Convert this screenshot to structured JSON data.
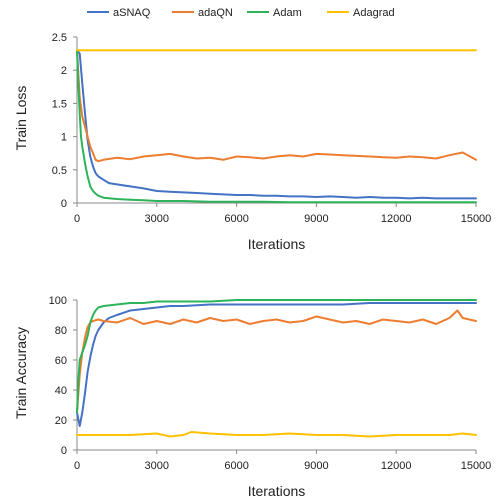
{
  "chart_data": [
    {
      "type": "line",
      "xlabel": "Iterations",
      "ylabel": "Train Loss",
      "xlim": [
        0,
        15000
      ],
      "ylim": [
        0,
        2.5
      ],
      "xticks": [
        "0",
        "3000",
        "6000",
        "9000",
        "12000",
        "15000"
      ],
      "yticks": [
        "0",
        "0.5",
        "1",
        "1.5",
        "2",
        "2.5"
      ],
      "grid": false,
      "legend": "top",
      "series": [
        {
          "name": "aSNAQ",
          "color": "#4472C4",
          "x": [
            0,
            100,
            200,
            300,
            400,
            500,
            600,
            700,
            800,
            1000,
            1200,
            1500,
            2000,
            2500,
            3000,
            3500,
            4000,
            4500,
            5000,
            5500,
            6000,
            6500,
            7000,
            7500,
            8000,
            8500,
            9000,
            9500,
            10000,
            10500,
            11000,
            11500,
            12000,
            12500,
            13000,
            13500,
            14000,
            14500,
            15000
          ],
          "y": [
            2.3,
            2.25,
            1.8,
            1.35,
            0.95,
            0.7,
            0.55,
            0.45,
            0.4,
            0.35,
            0.3,
            0.28,
            0.25,
            0.22,
            0.18,
            0.17,
            0.16,
            0.15,
            0.14,
            0.13,
            0.12,
            0.12,
            0.11,
            0.11,
            0.1,
            0.1,
            0.09,
            0.1,
            0.09,
            0.08,
            0.09,
            0.08,
            0.08,
            0.07,
            0.08,
            0.07,
            0.07,
            0.07,
            0.07
          ]
        },
        {
          "name": "adaQN",
          "color": "#ED7D31",
          "x": [
            0,
            100,
            200,
            300,
            400,
            500,
            600,
            700,
            800,
            1000,
            1500,
            2000,
            2500,
            3000,
            3500,
            4000,
            4500,
            5000,
            5500,
            6000,
            6500,
            7000,
            7500,
            8000,
            8500,
            9000,
            9500,
            10000,
            10500,
            11000,
            11500,
            12000,
            12500,
            13000,
            13500,
            14000,
            14500,
            15000
          ],
          "y": [
            2.3,
            1.6,
            1.3,
            1.15,
            1.0,
            0.85,
            0.75,
            0.65,
            0.63,
            0.65,
            0.68,
            0.66,
            0.7,
            0.72,
            0.74,
            0.7,
            0.67,
            0.68,
            0.65,
            0.7,
            0.69,
            0.67,
            0.7,
            0.72,
            0.7,
            0.74,
            0.73,
            0.72,
            0.71,
            0.7,
            0.69,
            0.68,
            0.7,
            0.69,
            0.67,
            0.72,
            0.76,
            0.65
          ]
        },
        {
          "name": "Adam",
          "color": "#2DB35A",
          "x": [
            0,
            50,
            100,
            150,
            200,
            300,
            400,
            500,
            600,
            700,
            800,
            1000,
            1500,
            2000,
            2500,
            3000,
            4000,
            5000,
            6000,
            7000,
            8000,
            9000,
            10000,
            11000,
            12000,
            13000,
            14000,
            15000
          ],
          "y": [
            2.3,
            1.8,
            1.35,
            1.0,
            0.85,
            0.6,
            0.4,
            0.25,
            0.18,
            0.14,
            0.11,
            0.08,
            0.06,
            0.05,
            0.04,
            0.03,
            0.03,
            0.02,
            0.02,
            0.02,
            0.01,
            0.01,
            0.01,
            0.01,
            0.01,
            0.01,
            0.01,
            0.01
          ]
        },
        {
          "name": "Adagrad",
          "color": "#FFC000",
          "x": [
            0,
            3000,
            6000,
            9000,
            12000,
            15000
          ],
          "y": [
            2.3,
            2.3,
            2.3,
            2.3,
            2.3,
            2.3
          ]
        }
      ]
    },
    {
      "type": "line",
      "xlabel": "Iterations",
      "ylabel": "Train Accuracy",
      "xlim": [
        0,
        15000
      ],
      "ylim": [
        0,
        100
      ],
      "xticks": [
        "0",
        "3000",
        "6000",
        "9000",
        "12000",
        "15000"
      ],
      "yticks": [
        "0",
        "20",
        "40",
        "60",
        "80",
        "100"
      ],
      "grid": false,
      "series": [
        {
          "name": "aSNAQ",
          "color": "#4472C4",
          "x": [
            0,
            100,
            200,
            300,
            400,
            500,
            600,
            700,
            800,
            1000,
            1200,
            1500,
            2000,
            2500,
            3000,
            3500,
            4000,
            5000,
            6000,
            7000,
            8000,
            9000,
            10000,
            11000,
            12000,
            13000,
            14000,
            15000
          ],
          "y": [
            25,
            16,
            25,
            38,
            52,
            62,
            70,
            76,
            80,
            85,
            88,
            90,
            93,
            94,
            95,
            96,
            96,
            97,
            97,
            97,
            97,
            97,
            97,
            98,
            98,
            98,
            98,
            98
          ]
        },
        {
          "name": "adaQN",
          "color": "#ED7D31",
          "x": [
            0,
            100,
            200,
            300,
            400,
            500,
            600,
            800,
            1000,
            1500,
            2000,
            2500,
            3000,
            3500,
            4000,
            4500,
            5000,
            5500,
            6000,
            6500,
            7000,
            7500,
            8000,
            8500,
            9000,
            9500,
            10000,
            10500,
            11000,
            11500,
            12000,
            12500,
            13000,
            13500,
            14000,
            14300,
            14500,
            15000
          ],
          "y": [
            25,
            50,
            65,
            75,
            82,
            85,
            86,
            87,
            86,
            85,
            88,
            84,
            86,
            84,
            87,
            85,
            88,
            86,
            87,
            84,
            86,
            87,
            85,
            86,
            89,
            87,
            85,
            86,
            84,
            87,
            86,
            85,
            87,
            84,
            88,
            93,
            88,
            86
          ]
        },
        {
          "name": "Adam",
          "color": "#2DB35A",
          "x": [
            0,
            50,
            100,
            200,
            300,
            400,
            500,
            600,
            700,
            800,
            1000,
            1500,
            2000,
            2500,
            3000,
            3500,
            4000,
            5000,
            6000,
            7000,
            8000,
            9000,
            10000,
            11000,
            12000,
            13000,
            14000,
            15000
          ],
          "y": [
            25,
            45,
            60,
            65,
            70,
            76,
            85,
            90,
            93,
            95,
            96,
            97,
            98,
            98,
            99,
            99,
            99,
            99,
            100,
            100,
            100,
            100,
            100,
            100,
            100,
            100,
            100,
            100
          ]
        },
        {
          "name": "Adagrad",
          "color": "#FFC000",
          "x": [
            0,
            1000,
            2000,
            3000,
            3500,
            4000,
            4300,
            5000,
            6000,
            7000,
            8000,
            9000,
            10000,
            11000,
            12000,
            13000,
            14000,
            14500,
            15000
          ],
          "y": [
            10,
            10,
            10,
            11,
            9,
            10,
            12,
            11,
            10,
            10,
            11,
            10,
            10,
            9,
            10,
            10,
            10,
            11,
            10
          ]
        }
      ]
    }
  ]
}
